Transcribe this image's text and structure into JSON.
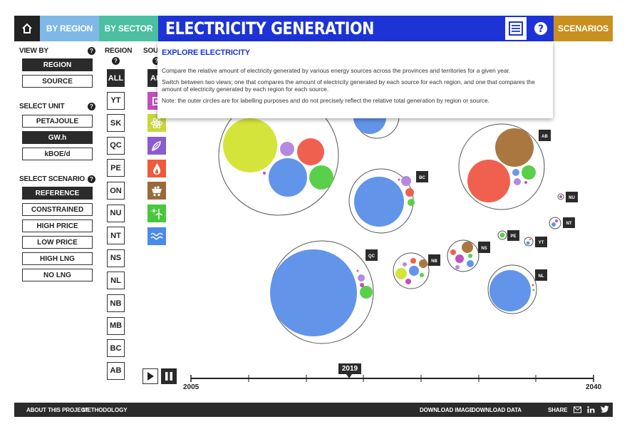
{
  "header": {
    "by_region": "BY REGION",
    "by_sector": "BY SECTOR",
    "title": "ELECTRICITY GENERATION",
    "scenarios": "SCENARIOS"
  },
  "view_by": {
    "label": "VIEW BY",
    "options": [
      "REGION",
      "SOURCE"
    ],
    "selected": "REGION"
  },
  "unit": {
    "label": "SELECT UNIT",
    "options": [
      "PETAJOULE",
      "GW.h",
      "kBOE/d"
    ],
    "selected": "GW.h"
  },
  "scenario": {
    "label": "SELECT SCENARIO",
    "options": [
      "REFERENCE",
      "CONSTRAINED",
      "HIGH PRICE",
      "LOW PRICE",
      "HIGH LNG",
      "NO LNG"
    ],
    "selected": "REFERENCE"
  },
  "regions": {
    "label": "REGION",
    "items": [
      "ALL",
      "YT",
      "SK",
      "QC",
      "PE",
      "ON",
      "NU",
      "NT",
      "NS",
      "NL",
      "NB",
      "MB",
      "BC",
      "AB"
    ]
  },
  "sources": {
    "label": "SOUR",
    "all": "AL",
    "icons": [
      {
        "name": "coal",
        "color": "#c04fc0"
      },
      {
        "name": "nuclear",
        "color": "#c8d83a"
      },
      {
        "name": "biomass",
        "color": "#8a5cd0"
      },
      {
        "name": "gas",
        "color": "#f05a3a"
      },
      {
        "name": "oil",
        "color": "#9a6b3a"
      },
      {
        "name": "solar-wind",
        "color": "#46c83a"
      },
      {
        "name": "hydro",
        "color": "#4a8ae8"
      }
    ]
  },
  "popup": {
    "title": "EXPLORE ELECTRICITY",
    "p1": "Compare the relative amount of electricity generated by various energy sources across the provinces and territories for a given year.",
    "p2": "Switch between two views; one that compares the amount of electricity generated by each source for each region, and one that compares the amount of electricity generated by each region for each source.",
    "p3": "Note: the outer circles are for labelling purposes and do not precisely reflect the relative total generation by region or source."
  },
  "bubbles": [
    {
      "region": "AB"
    },
    {
      "region": "BC"
    },
    {
      "region": "NU"
    },
    {
      "region": "NT"
    },
    {
      "region": "PE"
    },
    {
      "region": "YT"
    },
    {
      "region": "NS"
    },
    {
      "region": "NB"
    },
    {
      "region": "QC"
    },
    {
      "region": "NL"
    }
  ],
  "timeline": {
    "start": "2005",
    "end": "2040",
    "current": "2019"
  },
  "footer": {
    "about": "ABOUT THIS PROJECT",
    "methodology": "METHODOLOGY",
    "download_image": "DOWNLOAD IMAGE",
    "download_data": "DOWNLOAD DATA",
    "share": "SHARE"
  },
  "colors": {
    "nav_blue": "#1d33d6",
    "region_tab": "#7fb8e6",
    "sector_tab": "#4bbfa0",
    "scenarios": "#c9901f"
  }
}
